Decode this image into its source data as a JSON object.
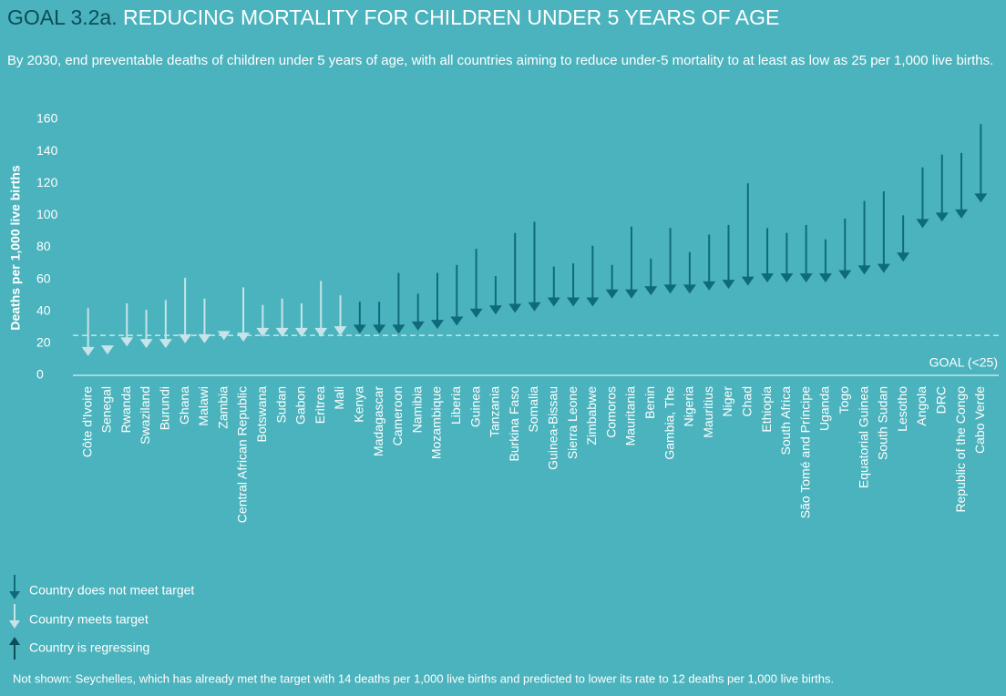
{
  "chart_data": {
    "type": "arrow",
    "title_prefix": "GOAL 3.2a.",
    "title": "REDUCING MORTALITY FOR CHILDREN UNDER 5 YEARS OF AGE",
    "subtitle": "By 2030, end preventable deaths of children under 5 years of age, with all countries aiming to reduce under-5 mortality to at least as low as 25 per 1,000 live births.",
    "y_label": "Deaths per 1,000 live births",
    "categories": [
      "Côte d'Ivoire",
      "Senegal",
      "Rwanda",
      "Swaziland",
      "Burundi",
      "Ghana",
      "Malawi",
      "Zambia",
      "Central African Republic",
      "Botswana",
      "Sudan",
      "Gabon",
      "Eritrea",
      "Mali",
      "Kenya",
      "Madagascar",
      "Cameroon",
      "Namibia",
      "Mozambique",
      "Liberia",
      "Guinea",
      "Tanzania",
      "Burkina Faso",
      "Somalia",
      "Guinea-Bissau",
      "Sierra Leone",
      "Zimbabwe",
      "Comoros",
      "Mauritania",
      "Benin",
      "Gambia, The",
      "Nigeria",
      "Mauritius",
      "Niger",
      "Chad",
      "Ethiopia",
      "South Africa",
      "São Tomé and Príncipe",
      "Uganda",
      "Togo",
      "Equatorial Guinea",
      "South Sudan",
      "Lesotho",
      "Angola",
      "DRC",
      "Republic of the Congo",
      "Cabo Verde"
    ],
    "start": [
      42,
      16,
      45,
      41,
      47,
      61,
      48,
      26,
      55,
      44,
      48,
      45,
      59,
      50,
      46,
      46,
      64,
      51,
      64,
      69,
      79,
      62,
      89,
      96,
      68,
      70,
      81,
      69,
      93,
      73,
      92,
      77,
      88,
      94,
      120,
      92,
      89,
      94,
      85,
      98,
      109,
      115,
      100,
      130,
      138,
      139,
      157
    ],
    "end": [
      12,
      13,
      18,
      17,
      17,
      20,
      20,
      22,
      21,
      24,
      24,
      24,
      24,
      25,
      26,
      26,
      26,
      28,
      29,
      31,
      36,
      38,
      39,
      40,
      43,
      43,
      43,
      48,
      48,
      50,
      51,
      51,
      53,
      54,
      56,
      58,
      58,
      58,
      58,
      60,
      63,
      64,
      71,
      92,
      96,
      98,
      108
    ],
    "goal": 25,
    "goal_label": "GOAL (<25)",
    "ylim": [
      0,
      160
    ],
    "yticks": [
      0,
      20,
      40,
      60,
      80,
      100,
      120,
      140,
      160
    ],
    "legend": [
      {
        "name": "Country does not meet target",
        "color": "#0e6b7a"
      },
      {
        "name": "Country meets target",
        "color": "#c6e4e9"
      },
      {
        "name": "Country is regressing",
        "color": "#0b4d58"
      }
    ],
    "note": "Not shown: Seychelles, which has already met the target with 14 deaths per 1,000 live births and predicted to lower its rate to 12 deaths per 1,000 live births."
  }
}
